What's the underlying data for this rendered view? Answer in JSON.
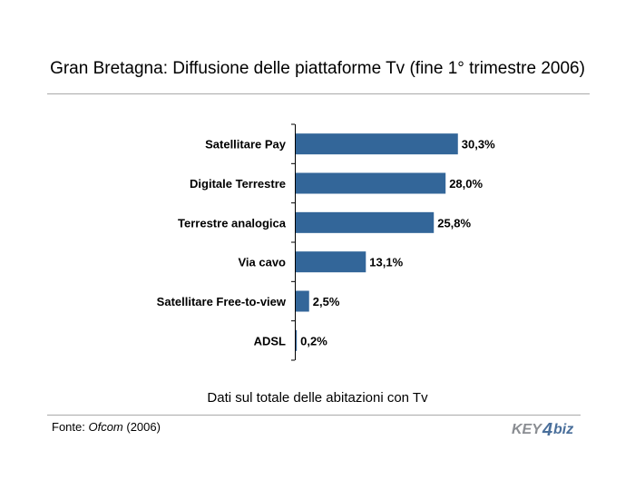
{
  "header": {
    "title": "Gran Bretagna: Diffusione delle piattaforme Tv (fine 1° trimestre 2006)"
  },
  "chart_data": {
    "type": "bar",
    "orientation": "horizontal",
    "categories": [
      "Satellitare Pay",
      "Digitale Terrestre",
      "Terrestre analogica",
      "Via cavo",
      "Satellitare Free-to-view",
      "ADSL"
    ],
    "values": [
      30.3,
      28.0,
      25.8,
      13.1,
      2.5,
      0.2
    ],
    "value_labels": [
      "30,3%",
      "28,0%",
      "25,8%",
      "13,1%",
      "2,5%",
      "0,2%"
    ],
    "bar_color": "#336699",
    "xlim": [
      0,
      100
    ],
    "grid": false,
    "legend": "none"
  },
  "caption": "Dati sul totale delle abitazioni con Tv",
  "footer": {
    "source_prefix": "Fonte: ",
    "source_name": "Ofcom",
    "source_suffix": " (2006)",
    "logo_part1": "KEY",
    "logo_digit": "4",
    "logo_part2": "biz",
    "logo_color": "#8a8d92",
    "logo_accent": "#4a6f9b"
  }
}
